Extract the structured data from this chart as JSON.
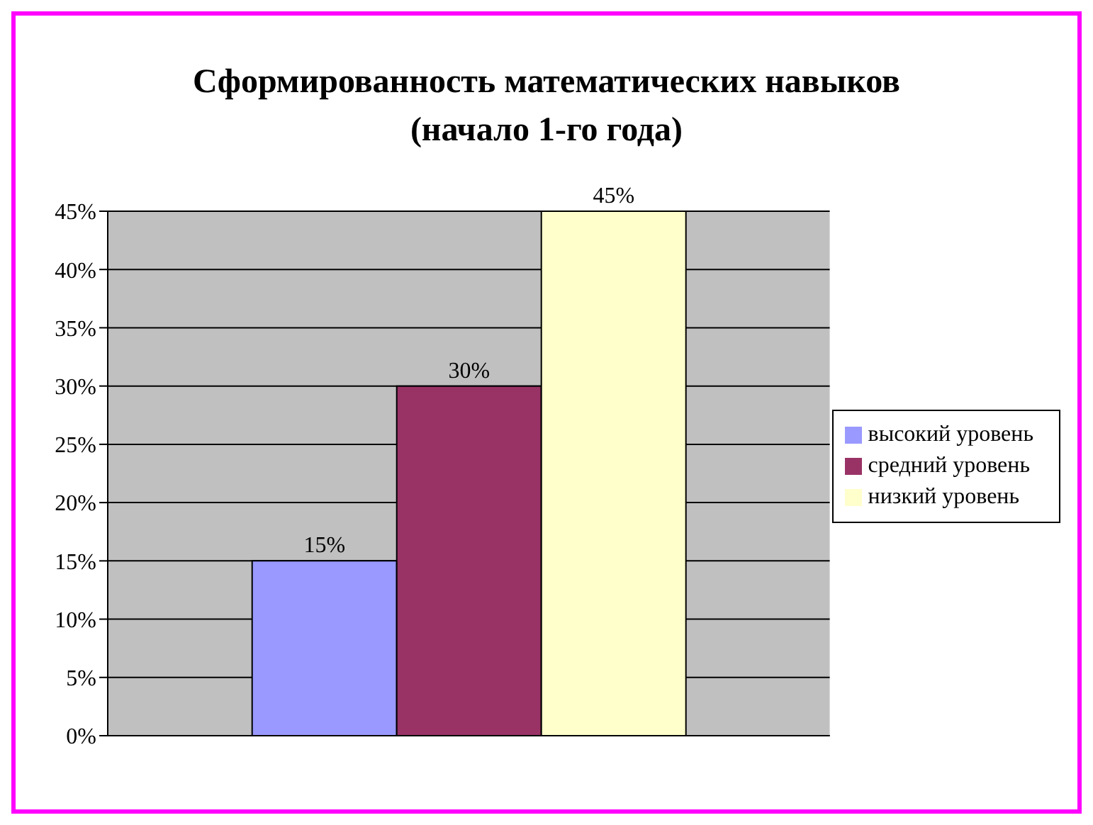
{
  "chart_data": {
    "type": "bar",
    "title": "Сформированность математических навыков\n(начало 1-го года)",
    "categories": [
      null
    ],
    "series": [
      {
        "name": "высокий уровень",
        "color": "#9999ff",
        "values": [
          15
        ],
        "value_labels": [
          "15%"
        ]
      },
      {
        "name": "средний уровень",
        "color": "#993366",
        "values": [
          30
        ],
        "value_labels": [
          "30%"
        ]
      },
      {
        "name": "низкий уровень",
        "color": "#ffffcc",
        "values": [
          45
        ],
        "value_labels": [
          "45%"
        ]
      }
    ],
    "ylim": [
      0,
      45
    ],
    "yticks": [
      {
        "value": 0,
        "label": "0%"
      },
      {
        "value": 5,
        "label": "5%"
      },
      {
        "value": 10,
        "label": "10%"
      },
      {
        "value": 15,
        "label": "15%"
      },
      {
        "value": 20,
        "label": "20%"
      },
      {
        "value": 25,
        "label": "25%"
      },
      {
        "value": 30,
        "label": "30%"
      },
      {
        "value": 35,
        "label": "35%"
      },
      {
        "value": 40,
        "label": "40%"
      },
      {
        "value": 45,
        "label": "45%"
      }
    ],
    "grid": "y",
    "legend": "right"
  }
}
